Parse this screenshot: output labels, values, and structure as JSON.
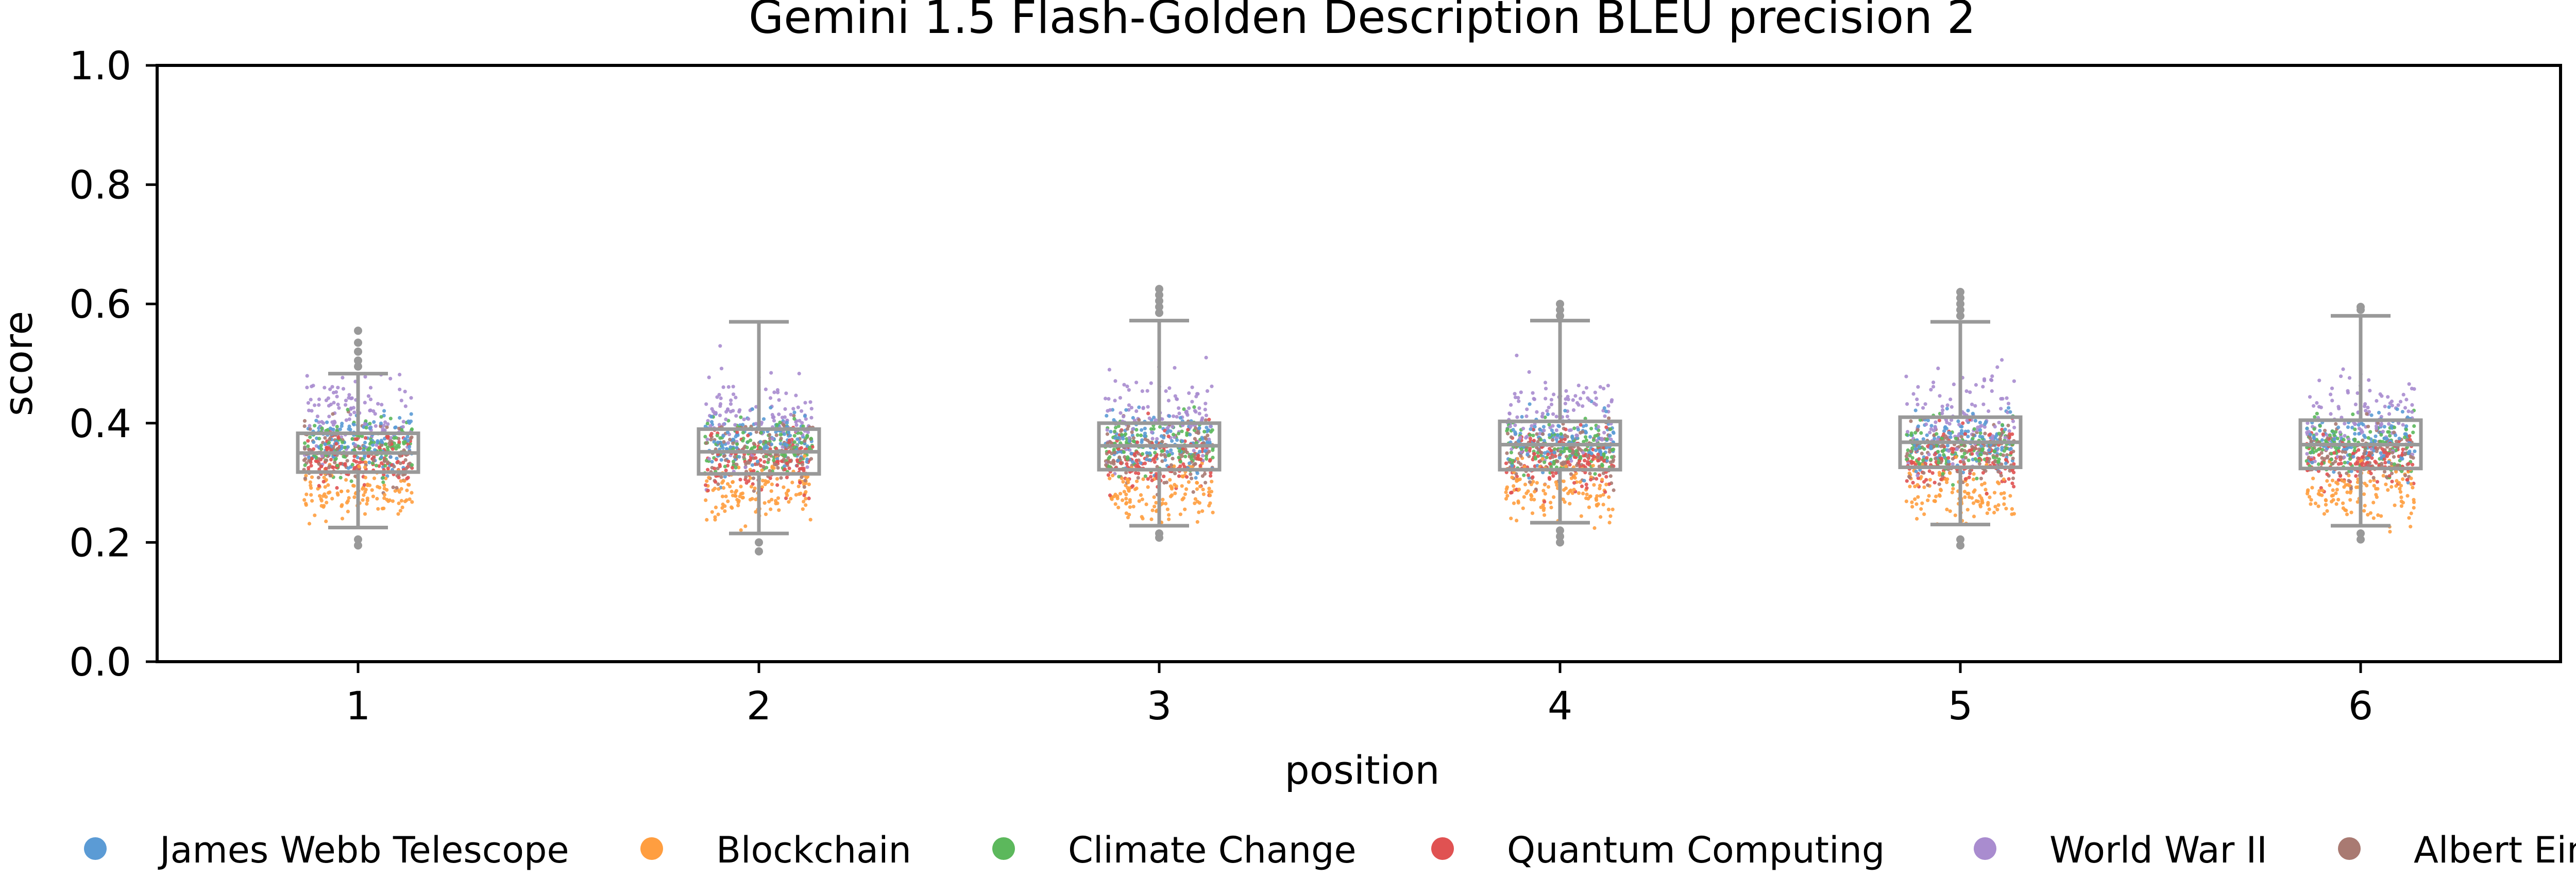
{
  "chart_data": {
    "type": "box+strip",
    "title": "Gemini 1.5 Flash-Golden Description BLEU precision 2",
    "xlabel": "position",
    "ylabel": "score",
    "ylim": [
      0.0,
      1.0
    ],
    "yticks": [
      "0.0",
      "0.2",
      "0.4",
      "0.6",
      "0.8",
      "1.0"
    ],
    "categories": [
      "1",
      "2",
      "3",
      "4",
      "5",
      "6"
    ],
    "grid": false,
    "legend_position": "bottom",
    "box_color": "#999999",
    "boxes": [
      {
        "position": "1",
        "whisker_low": 0.225,
        "q1": 0.318,
        "median": 0.35,
        "q3": 0.383,
        "whisker_high": 0.483,
        "outliers_high": [
          0.495,
          0.505,
          0.52,
          0.535,
          0.555
        ],
        "outliers_low": [
          0.205,
          0.195
        ]
      },
      {
        "position": "2",
        "whisker_low": 0.215,
        "q1": 0.315,
        "median": 0.352,
        "q3": 0.39,
        "whisker_high": 0.57,
        "outliers_high": [],
        "outliers_low": [
          0.2,
          0.185
        ]
      },
      {
        "position": "3",
        "whisker_low": 0.228,
        "q1": 0.322,
        "median": 0.362,
        "q3": 0.4,
        "whisker_high": 0.572,
        "outliers_high": [
          0.585,
          0.595,
          0.605,
          0.615,
          0.625
        ],
        "outliers_low": [
          0.215,
          0.208
        ]
      },
      {
        "position": "4",
        "whisker_low": 0.233,
        "q1": 0.322,
        "median": 0.364,
        "q3": 0.403,
        "whisker_high": 0.572,
        "outliers_high": [
          0.58,
          0.59,
          0.6
        ],
        "outliers_low": [
          0.22,
          0.21,
          0.2
        ]
      },
      {
        "position": "5",
        "whisker_low": 0.23,
        "q1": 0.326,
        "median": 0.368,
        "q3": 0.41,
        "whisker_high": 0.57,
        "outliers_high": [
          0.58,
          0.59,
          0.6,
          0.61,
          0.62
        ],
        "outliers_low": [
          0.205,
          0.195
        ]
      },
      {
        "position": "6",
        "whisker_low": 0.228,
        "q1": 0.324,
        "median": 0.364,
        "q3": 0.405,
        "whisker_high": 0.58,
        "outliers_high": [
          0.59,
          0.595
        ],
        "outliers_low": [
          0.215,
          0.205
        ]
      }
    ],
    "series": [
      {
        "name": "James Webb Telescope",
        "color": "#5b9bd5",
        "center": 0.37,
        "spread": 0.045
      },
      {
        "name": "Blockchain",
        "color": "#ff9e40",
        "center": 0.285,
        "spread": 0.045
      },
      {
        "name": "Climate Change",
        "color": "#5cb85c",
        "center": 0.36,
        "spread": 0.04
      },
      {
        "name": "Quantum Computing",
        "color": "#e05252",
        "center": 0.34,
        "spread": 0.045
      },
      {
        "name": "World War II",
        "color": "#a98ccf",
        "center": 0.41,
        "spread": 0.065
      },
      {
        "name": "Albert Einstein",
        "color": "#a97a72",
        "center": 0.35,
        "spread": 0.045
      }
    ]
  }
}
